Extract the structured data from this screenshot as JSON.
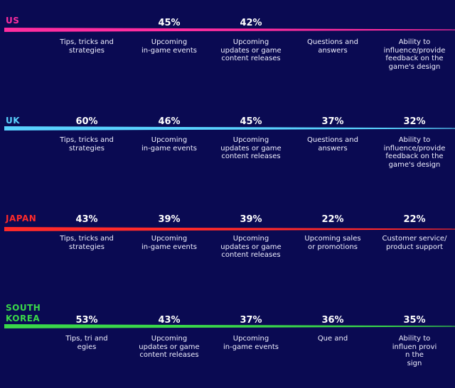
{
  "colors": {
    "background": "#0a0a52",
    "us": "#ff2da0",
    "uk": "#5ad2ff",
    "japan": "#ff2a2a",
    "south_korea": "#3ad84a"
  },
  "chart_data": {
    "type": "table",
    "regions": [
      {
        "name": "US",
        "color": "#ff2da0",
        "items": [
          {
            "label": "Tips, tricks and\nstrategies",
            "value": null,
            "display": ""
          },
          {
            "label": "Upcoming\nin-game events",
            "value": 45,
            "display": "45%"
          },
          {
            "label": "Upcoming\nupdates or game\ncontent releases",
            "value": 42,
            "display": "42%"
          },
          {
            "label": "Questions and\nanswers",
            "value": null,
            "display": ""
          },
          {
            "label": "Ability to\ninfluence/provide\nfeedback on the\ngame's design",
            "value": null,
            "display": ""
          }
        ]
      },
      {
        "name": "UK",
        "color": "#5ad2ff",
        "items": [
          {
            "label": "Tips, tricks and\nstrategies",
            "value": 60,
            "display": "60%"
          },
          {
            "label": "Upcoming\nin-game events",
            "value": 46,
            "display": "46%"
          },
          {
            "label": "Upcoming\nupdates or game\ncontent releases",
            "value": 45,
            "display": "45%"
          },
          {
            "label": "Questions and\nanswers",
            "value": 37,
            "display": "37%"
          },
          {
            "label": "Ability to\ninfluence/provide\nfeedback on the\ngame's design",
            "value": 32,
            "display": "32%"
          }
        ]
      },
      {
        "name": "JAPAN",
        "color": "#ff2a2a",
        "items": [
          {
            "label": "Tips, tricks and\nstrategies",
            "value": 43,
            "display": "43%"
          },
          {
            "label": "Upcoming\nin-game events",
            "value": 39,
            "display": "39%"
          },
          {
            "label": "Upcoming\nupdates or game\ncontent releases",
            "value": 39,
            "display": "39%"
          },
          {
            "label": "Upcoming sales\nor promotions",
            "value": 22,
            "display": "22%"
          },
          {
            "label": "Customer service/\nproduct support",
            "value": 22,
            "display": "22%"
          }
        ]
      },
      {
        "name": "SOUTH\nKOREA",
        "color": "#3ad84a",
        "items": [
          {
            "label": "Tips, tri  and\n   egies",
            "value": 53,
            "display": "53%"
          },
          {
            "label": "Upcoming\nupdates or game\ncontent releases",
            "value": 43,
            "display": "43%"
          },
          {
            "label": "Upcoming\nin-game events",
            "value": 37,
            "display": "37%"
          },
          {
            "label": "Que     and",
            "value": 36,
            "display": "36%"
          },
          {
            "label": "Ability to\ninfluen   provi\n   n the\n     sign",
            "value": 35,
            "display": "35%"
          }
        ]
      }
    ]
  }
}
